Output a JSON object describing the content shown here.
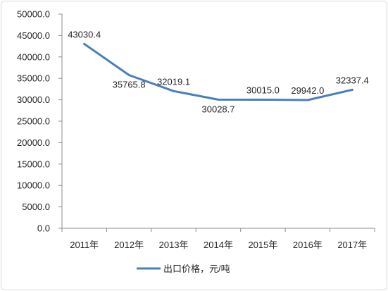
{
  "chart_data": {
    "type": "line",
    "categories": [
      "2011年",
      "2012年",
      "2013年",
      "2014年",
      "2015年",
      "2016年",
      "2017年"
    ],
    "series": [
      {
        "name": "出口价格，元/吨",
        "values": [
          43030.4,
          35765.8,
          32019.1,
          30028.7,
          30015.0,
          29942.0,
          32337.4
        ],
        "labels": [
          "43030.4",
          "35765.8",
          "32019.1",
          "30028.7",
          "30015.0",
          "29942.0",
          "32337.4"
        ],
        "color": "#4a7ebb"
      }
    ],
    "ylim": [
      0,
      50000
    ],
    "yticks": [
      "0.0",
      "5000.0",
      "10000.0",
      "15000.0",
      "20000.0",
      "25000.0",
      "30000.0",
      "35000.0",
      "40000.0",
      "45000.0",
      "50000.0"
    ],
    "grid": false,
    "legend": "bottom"
  }
}
